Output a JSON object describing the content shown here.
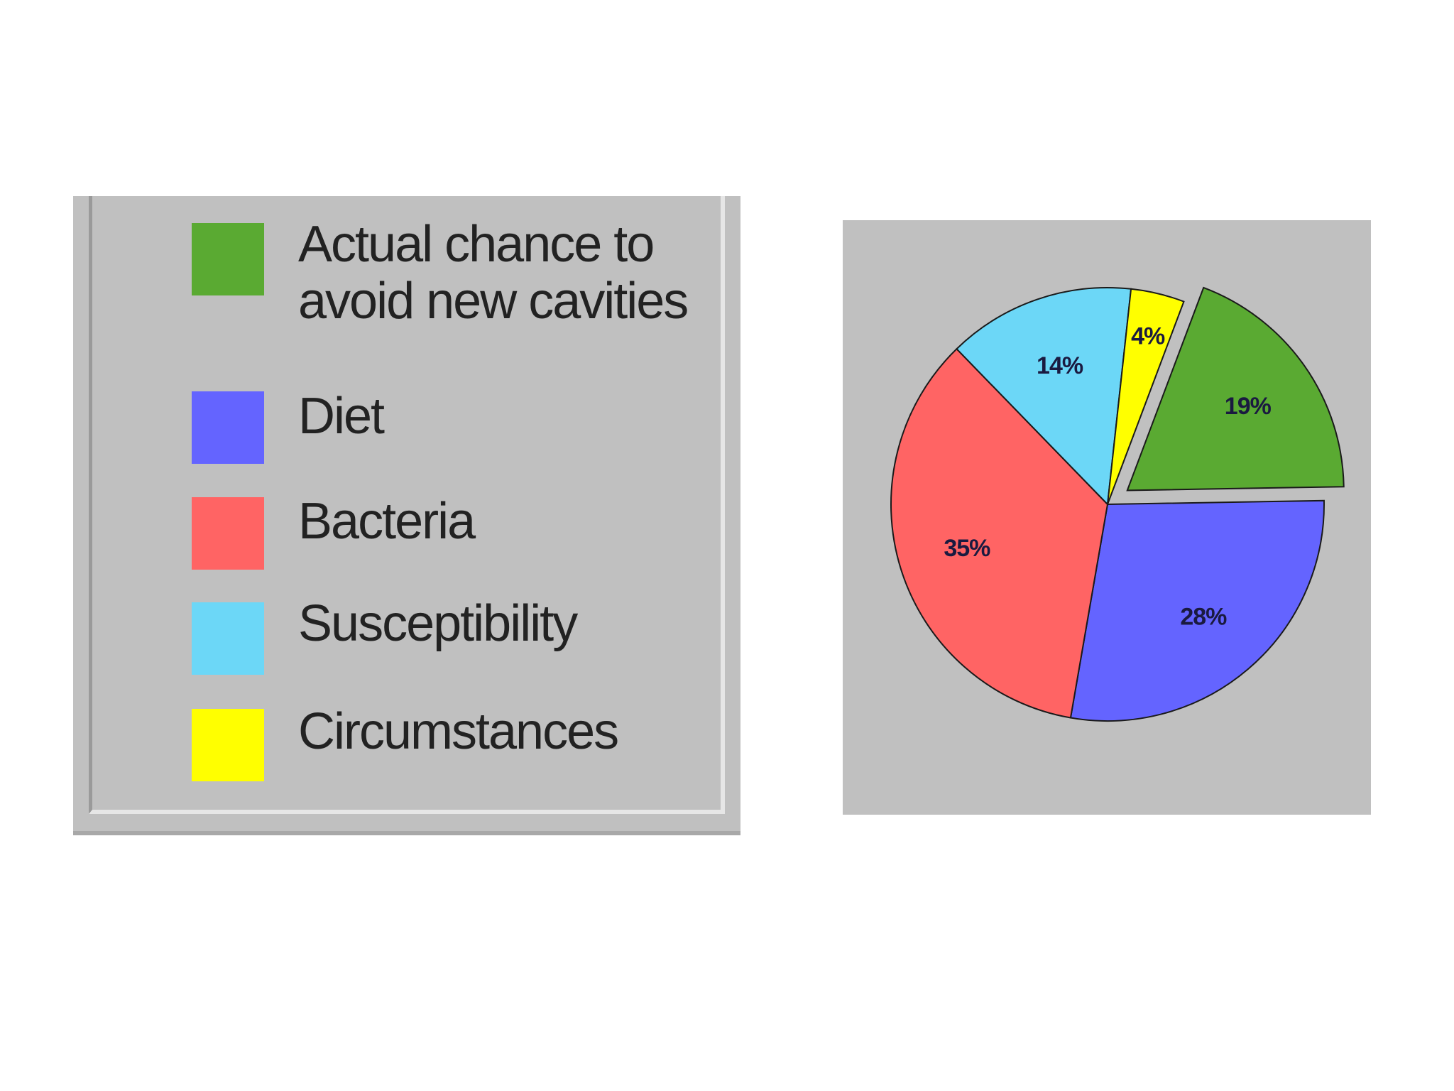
{
  "chart_data": {
    "type": "pie",
    "categories": [
      "Actual chance to avoid new cavities",
      "Diet",
      "Bacteria",
      "Susceptibility",
      "Circumstances"
    ],
    "values": [
      19,
      28,
      35,
      14,
      4
    ],
    "value_labels": [
      "19%",
      "28%",
      "35%",
      "14%",
      "4%"
    ],
    "colors": [
      "#5aaa32",
      "#6464ff",
      "#ff6464",
      "#6cd7f7",
      "#ffff00"
    ],
    "exploded": [
      true,
      false,
      false,
      false,
      false
    ],
    "legend_placement": "left"
  },
  "legend": {
    "items": [
      {
        "label_lines": [
          "Actual chance to",
          "avoid new cavities"
        ],
        "color": "#5aaa32"
      },
      {
        "label_lines": [
          "Diet"
        ],
        "color": "#6464ff"
      },
      {
        "label_lines": [
          "Bacteria"
        ],
        "color": "#ff6464"
      },
      {
        "label_lines": [
          "Susceptibility"
        ],
        "color": "#6cd7f7"
      },
      {
        "label_lines": [
          "Circumstances"
        ],
        "color": "#ffff00"
      }
    ]
  }
}
